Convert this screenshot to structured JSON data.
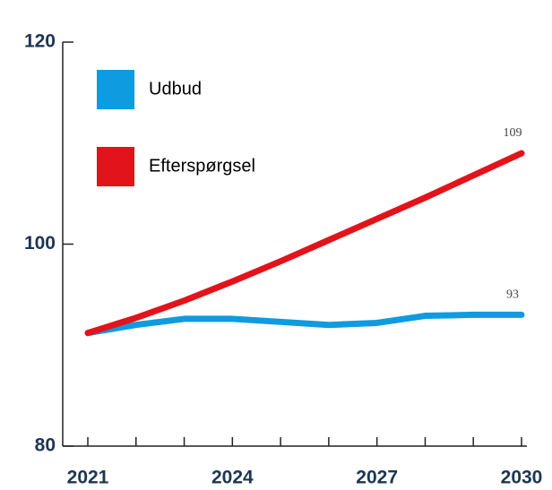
{
  "chart_data": {
    "type": "line",
    "x": [
      2021,
      2022,
      2023,
      2024,
      2025,
      2026,
      2027,
      2028,
      2029,
      2030
    ],
    "xlim": [
      2021,
      2030
    ],
    "xticks": [
      2021,
      2024,
      2027,
      2030
    ],
    "ylim": [
      80,
      120
    ],
    "yticks": [
      80,
      100,
      120
    ],
    "legend": "upper left",
    "series": [
      {
        "name": "Udbud",
        "color": "#0f9be0",
        "values": [
          91.2,
          92.0,
          92.6,
          92.6,
          92.3,
          92.0,
          92.2,
          92.9,
          93.0,
          93
        ]
      },
      {
        "name": "Efterspørgsel",
        "color": "#e3131b",
        "values": [
          91.2,
          92.7,
          94.4,
          96.3,
          98.3,
          100.4,
          102.5,
          104.6,
          106.8,
          109
        ]
      }
    ]
  }
}
